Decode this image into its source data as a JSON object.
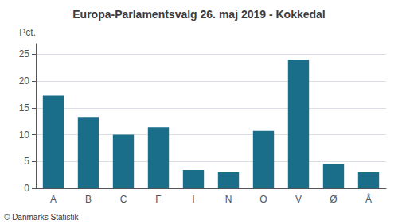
{
  "chart_data": {
    "type": "bar",
    "title": "Europa-Parlamentsvalg 26. maj 2019 - Kokkedal",
    "categories": [
      "A",
      "B",
      "C",
      "F",
      "I",
      "N",
      "O",
      "V",
      "Ø",
      "Å"
    ],
    "values": [
      17.3,
      13.3,
      10.0,
      11.4,
      3.4,
      3.0,
      10.7,
      24.0,
      4.6,
      3.0
    ],
    "color": "#1a6e8a",
    "ylabel": "Pct.",
    "ylim": [
      0,
      27
    ],
    "yticks": [
      0,
      5,
      10,
      15,
      20,
      25
    ],
    "grid": true,
    "annotations": [
      "© Danmarks Statistik"
    ]
  }
}
